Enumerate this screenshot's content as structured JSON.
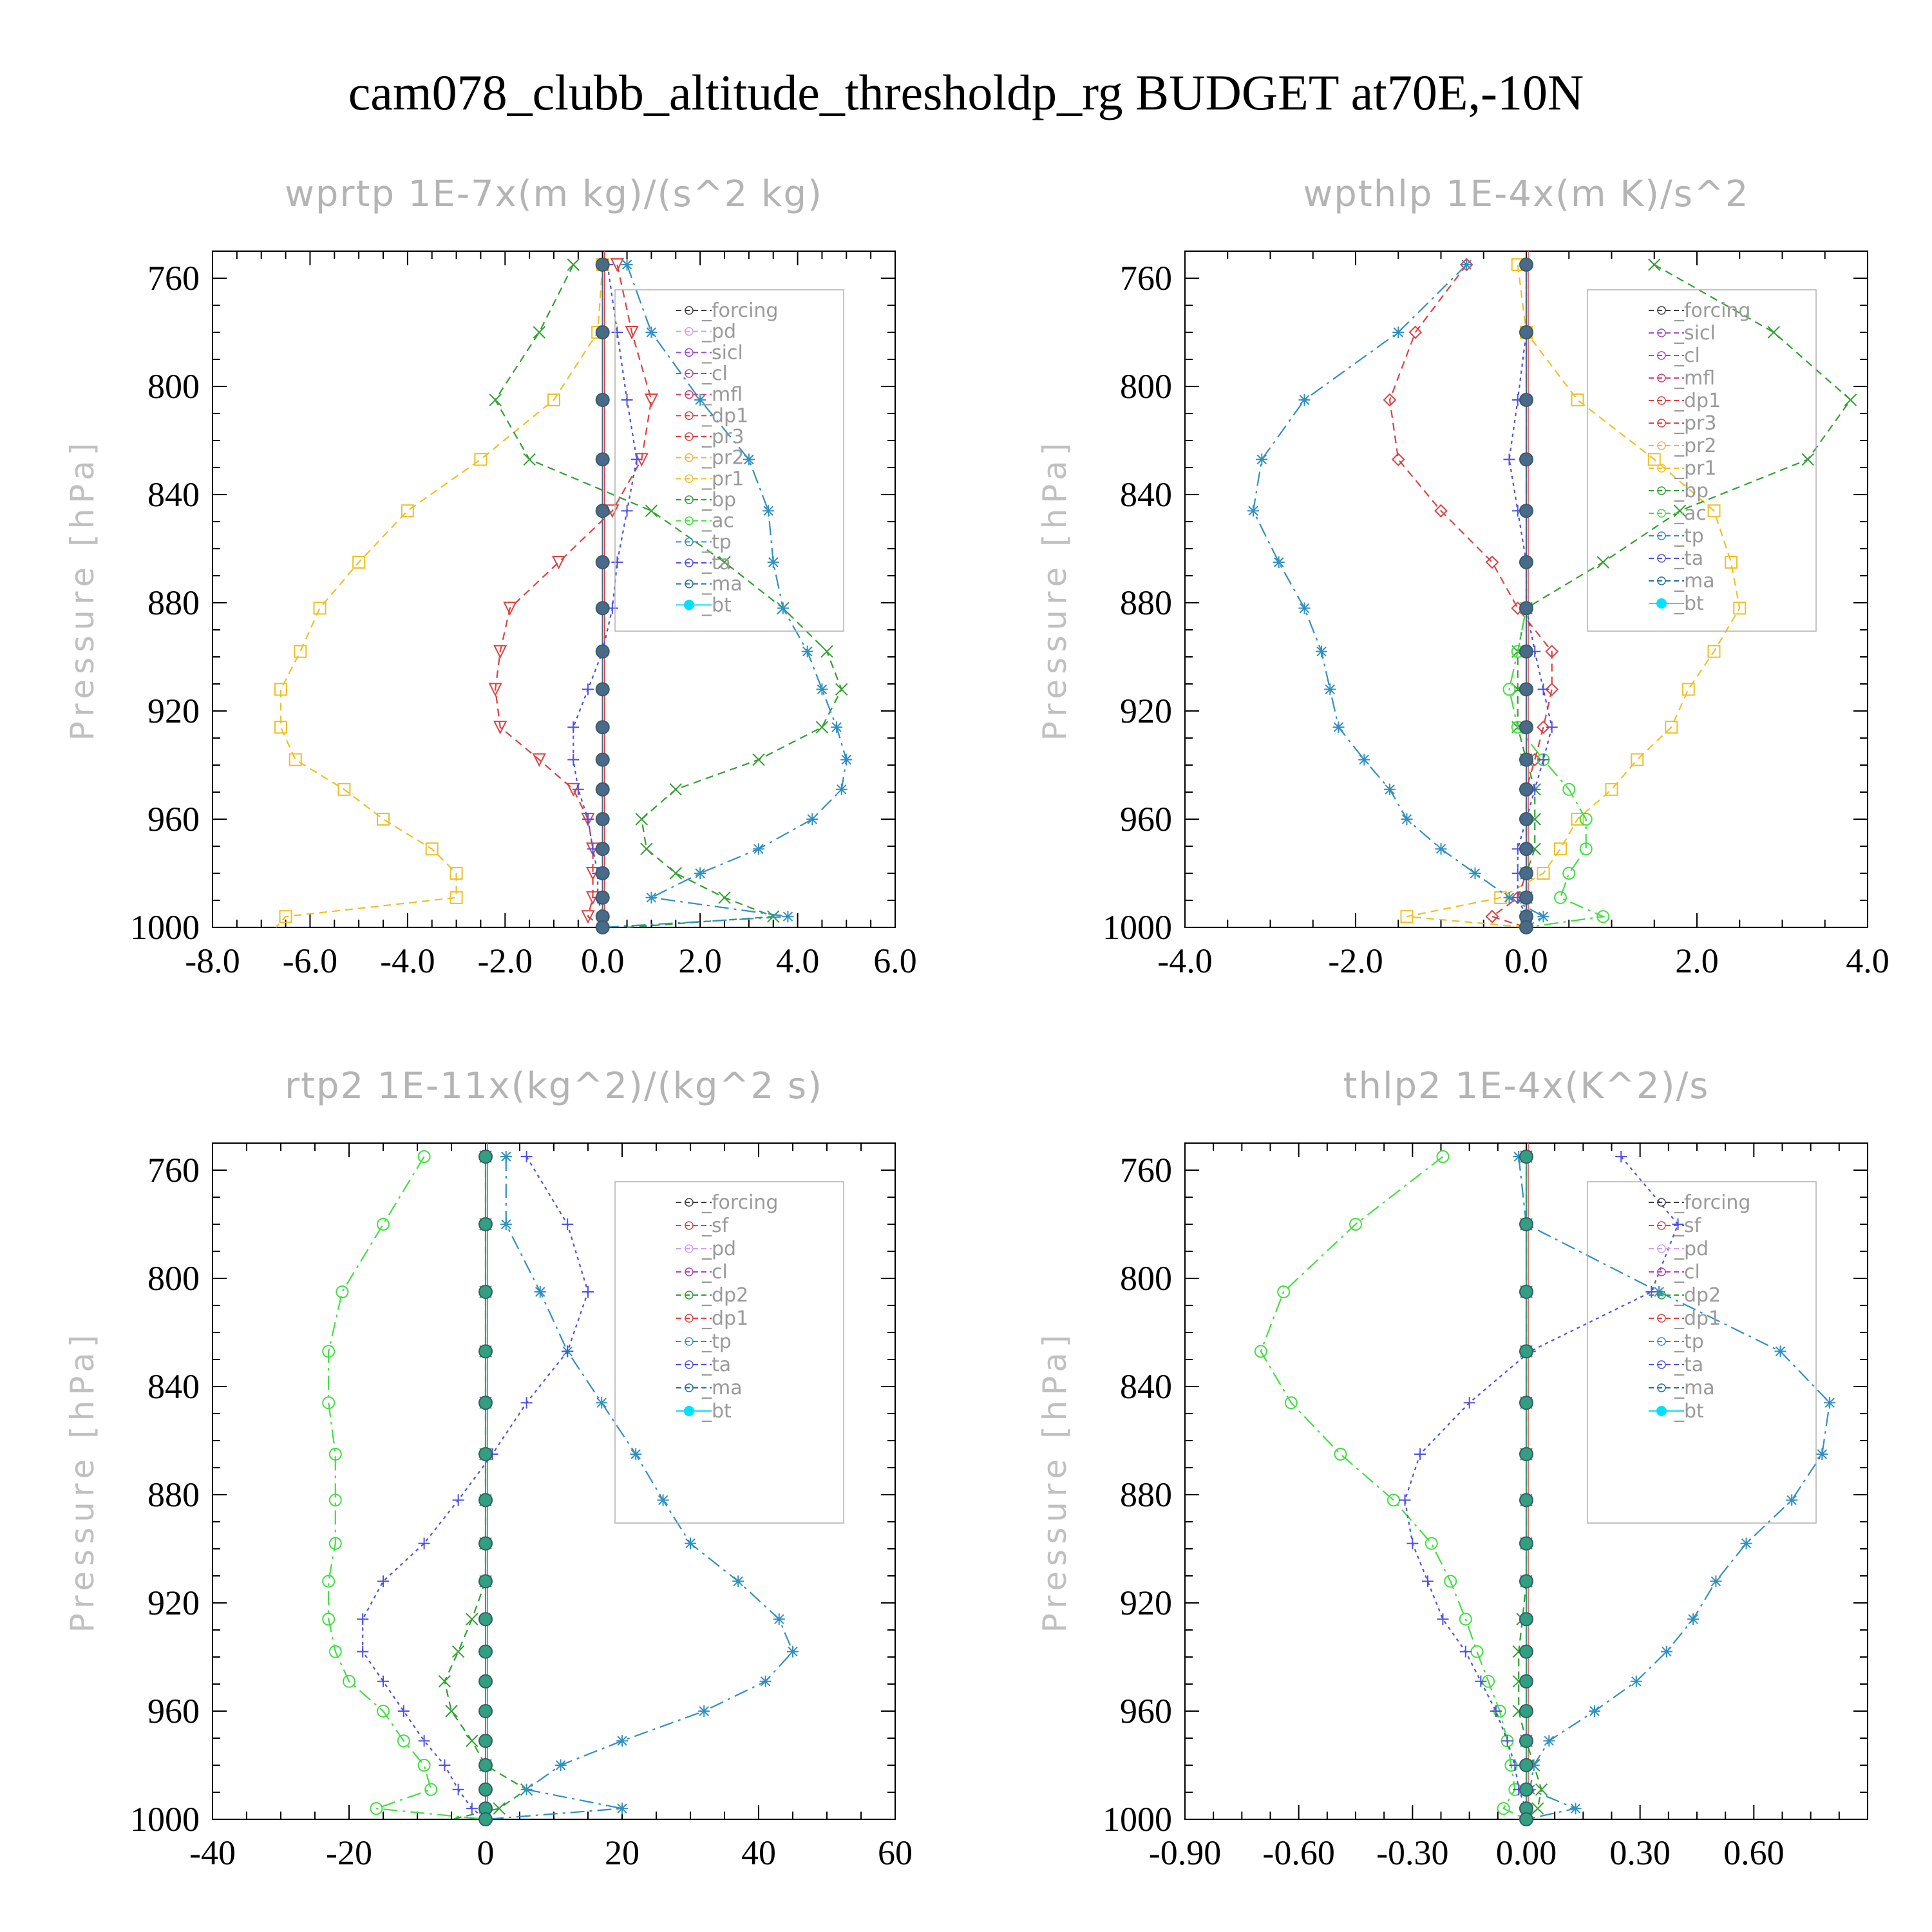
{
  "title": "cam078_clubb_altitude_thresholdp_rg  BUDGET at70E,-10N",
  "colors": {
    "forcing_dark": "#404040",
    "pd": "#c8a0e8",
    "sicl": "#9a50d0",
    "cl": "#b040c0",
    "mfl": "#d04070",
    "dp1_red": "#e04040",
    "pr3": "#e04040",
    "pr2": "#ffb040",
    "pr1": "#f0c020",
    "bp": "#30a030",
    "ac": "#40e040",
    "tp": "#3090c0",
    "ta": "#5050e0",
    "ma": "#2070a0",
    "bt": "#00e0ff"
  },
  "chart_data": [
    {
      "type": "line",
      "title": "wprtp  1E-7x(m kg)/(s^2 kg)",
      "ylabel": "Pressure [hPa]",
      "xlim": [
        -8,
        6
      ],
      "ylim": [
        750,
        1000
      ],
      "xticks": [
        "-8.0",
        "-6.0",
        "-4.0",
        "-2.0",
        "0.0",
        "2.0",
        "4.0",
        "6.0"
      ],
      "xtick_values": [
        -8,
        -6,
        -4,
        -2,
        0,
        2,
        4,
        6
      ],
      "yticks": [
        "760",
        "800",
        "840",
        "880",
        "920",
        "960",
        "1000"
      ],
      "levels": [
        755,
        780,
        805,
        827,
        846,
        865,
        882,
        898,
        912,
        926,
        938,
        949,
        960,
        971,
        980,
        989,
        996,
        1000
      ],
      "legend": [
        "_forcing",
        "_pd",
        "_sicl",
        "_cl",
        "_mfl",
        "_dp1",
        "_pr3",
        "_pr2",
        "_pr1",
        "_bp",
        "_ac",
        "_tp",
        "_ta",
        "_ma",
        "_bt"
      ],
      "series": [
        {
          "name": "_pr1",
          "color": "#f0c020",
          "marker": "square",
          "dash": "12,8",
          "values": [
            0.0,
            -0.1,
            -1.0,
            -2.5,
            -4.0,
            -5.0,
            -5.8,
            -6.2,
            -6.6,
            -6.6,
            -6.3,
            -5.3,
            -4.5,
            -3.5,
            -3.0,
            -3.0,
            -6.5,
            -6.7
          ]
        },
        {
          "name": "_pr3",
          "color": "#e04040",
          "marker": "tri-down",
          "dash": "12,8",
          "values": [
            0.3,
            0.6,
            1.0,
            0.8,
            0.2,
            -0.9,
            -1.9,
            -2.1,
            -2.2,
            -2.1,
            -1.3,
            -0.6,
            -0.3,
            -0.2,
            -0.2,
            -0.2,
            -0.3,
            0.0
          ]
        },
        {
          "name": "_bp",
          "color": "#30a030",
          "marker": "x",
          "dash": "12,8",
          "values": [
            -0.6,
            -1.3,
            -2.2,
            -1.5,
            1.0,
            2.5,
            3.7,
            4.6,
            4.9,
            4.5,
            3.2,
            1.5,
            0.8,
            0.9,
            1.5,
            2.5,
            3.5,
            0.5
          ]
        },
        {
          "name": "_tp",
          "color": "#3090c0",
          "marker": "asterisk",
          "dash": "22,8,4,8",
          "values": [
            0.5,
            1.0,
            2.0,
            3.0,
            3.4,
            3.5,
            3.7,
            4.2,
            4.5,
            4.8,
            5.0,
            4.9,
            4.3,
            3.2,
            2.0,
            1.0,
            3.8,
            0.0
          ]
        },
        {
          "name": "_ta",
          "color": "#5050e0",
          "marker": "plus",
          "dash": "5,6",
          "values": [
            0.1,
            0.3,
            0.5,
            0.7,
            0.5,
            0.3,
            0.2,
            0.0,
            -0.3,
            -0.6,
            -0.6,
            -0.5,
            -0.3,
            -0.2,
            -0.1,
            -0.1,
            0.0,
            0.0
          ]
        },
        {
          "name": "_bt",
          "color": "#4a6a8a",
          "marker": "dot",
          "dash": "",
          "values": [
            0,
            0,
            0,
            0,
            0,
            0,
            0,
            0,
            0,
            0,
            0,
            0,
            0,
            0,
            0,
            0,
            0,
            0
          ]
        }
      ]
    },
    {
      "type": "line",
      "title": "wpthlp  1E-4x(m K)/s^2",
      "ylabel": "Pressure [hPa]",
      "xlim": [
        -4,
        4
      ],
      "ylim": [
        750,
        1000
      ],
      "xticks": [
        "-4.0",
        "-2.0",
        "0.0",
        "2.0",
        "4.0"
      ],
      "xtick_values": [
        -4,
        -2,
        0,
        2,
        4
      ],
      "yticks": [
        "760",
        "800",
        "840",
        "880",
        "920",
        "960",
        "1000"
      ],
      "levels": [
        755,
        780,
        805,
        827,
        846,
        865,
        882,
        898,
        912,
        926,
        938,
        949,
        960,
        971,
        980,
        989,
        996,
        1000
      ],
      "legend": [
        "_forcing",
        "_sicl",
        "_cl",
        "_mfl",
        "_dp1",
        "_pr3",
        "_pr2",
        "_pr1",
        "_bp",
        "_ac",
        "_tp",
        "_ta",
        "_ma",
        "_bt"
      ],
      "series": [
        {
          "name": "_pr1",
          "color": "#f0c020",
          "marker": "square",
          "dash": "12,8",
          "values": [
            -0.1,
            0.0,
            0.6,
            1.5,
            2.2,
            2.4,
            2.5,
            2.2,
            1.9,
            1.7,
            1.3,
            1.0,
            0.6,
            0.4,
            0.2,
            -0.3,
            -1.4,
            0.0
          ]
        },
        {
          "name": "_dp1",
          "color": "#e04040",
          "marker": "diamond",
          "dash": "12,8",
          "values": [
            -0.7,
            -1.3,
            -1.6,
            -1.5,
            -1.0,
            -0.4,
            -0.1,
            0.3,
            0.3,
            0.2,
            0.1,
            0.0,
            0.0,
            0.0,
            0.0,
            -0.1,
            -0.4,
            0.0
          ]
        },
        {
          "name": "_bp",
          "color": "#30a030",
          "marker": "x",
          "dash": "12,8",
          "values": [
            1.5,
            2.9,
            3.8,
            3.3,
            1.8,
            0.9,
            0.0,
            -0.1,
            -0.1,
            -0.1,
            0.0,
            0.1,
            0.1,
            0.1,
            0.0,
            0.0,
            0.0,
            0.0
          ]
        },
        {
          "name": "_ac",
          "color": "#40e040",
          "marker": "circle",
          "dash": "22,8,4,8",
          "values": [
            0.0,
            0.0,
            0.0,
            0.0,
            0.0,
            0.0,
            0.0,
            -0.1,
            -0.2,
            -0.1,
            0.2,
            0.5,
            0.7,
            0.7,
            0.5,
            0.4,
            0.9,
            0.0
          ]
        },
        {
          "name": "_tp",
          "color": "#3090c0",
          "marker": "asterisk",
          "dash": "22,8,4,8",
          "values": [
            -0.7,
            -1.5,
            -2.6,
            -3.1,
            -3.2,
            -2.9,
            -2.6,
            -2.4,
            -2.3,
            -2.2,
            -1.9,
            -1.6,
            -1.4,
            -1.0,
            -0.6,
            -0.2,
            0.2,
            0.0
          ]
        },
        {
          "name": "_ta",
          "color": "#5050e0",
          "marker": "plus",
          "dash": "5,6",
          "values": [
            0.0,
            0.0,
            -0.1,
            -0.2,
            -0.1,
            0.0,
            0.0,
            0.1,
            0.2,
            0.3,
            0.2,
            0.1,
            0.0,
            -0.1,
            -0.1,
            -0.1,
            0.0,
            0.0
          ]
        },
        {
          "name": "_bt",
          "color": "#4a6a8a",
          "marker": "dot",
          "dash": "",
          "values": [
            0,
            0,
            0,
            0,
            0,
            0,
            0,
            0,
            0,
            0,
            0,
            0,
            0,
            0,
            0,
            0,
            0,
            0
          ]
        }
      ]
    },
    {
      "type": "line",
      "title": "rtp2  1E-11x(kg^2)/(kg^2 s)",
      "ylabel": "Pressure [hPa]",
      "xlim": [
        -40,
        60
      ],
      "ylim": [
        750,
        1000
      ],
      "xticks": [
        "-40",
        "-20",
        "0",
        "20",
        "40",
        "60"
      ],
      "xtick_values": [
        -40,
        -20,
        0,
        20,
        40,
        60
      ],
      "yticks": [
        "760",
        "800",
        "840",
        "880",
        "920",
        "960",
        "1000"
      ],
      "levels": [
        755,
        780,
        805,
        827,
        846,
        865,
        882,
        898,
        912,
        926,
        938,
        949,
        960,
        971,
        980,
        989,
        996,
        1000
      ],
      "legend": [
        "_forcing",
        "_sf",
        "_pd",
        "_cl",
        "_dp2",
        "_dp1",
        "_tp",
        "_ta",
        "_ma",
        "_bt"
      ],
      "series": [
        {
          "name": "_dp1",
          "color": "#40e040",
          "marker": "circle",
          "dash": "22,8,4,8",
          "values": [
            -9,
            -15,
            -21,
            -23,
            -23,
            -22,
            -22,
            -22,
            -23,
            -23,
            -22,
            -20,
            -15,
            -12,
            -9,
            -8,
            -16,
            0
          ]
        },
        {
          "name": "_dp2",
          "color": "#30a030",
          "marker": "x",
          "dash": "12,8",
          "values": [
            0,
            0,
            0,
            0,
            0,
            0,
            0,
            0,
            0,
            -2,
            -4,
            -6,
            -5,
            -2,
            0,
            6,
            2,
            -5
          ]
        },
        {
          "name": "_tp",
          "color": "#3090c0",
          "marker": "asterisk",
          "dash": "22,8,4,8",
          "values": [
            3,
            3,
            8,
            12,
            17,
            22,
            26,
            30,
            37,
            43,
            45,
            41,
            32,
            20,
            11,
            6,
            20,
            0
          ]
        },
        {
          "name": "_ta",
          "color": "#5050e0",
          "marker": "plus",
          "dash": "5,6",
          "values": [
            6,
            12,
            15,
            12,
            6,
            1,
            -4,
            -9,
            -15,
            -18,
            -18,
            -15,
            -12,
            -9,
            -6,
            -4,
            -2,
            0
          ]
        },
        {
          "name": "_bt",
          "color": "#30a080",
          "marker": "dot",
          "dash": "",
          "values": [
            0,
            0,
            0,
            0,
            0,
            0,
            0,
            0,
            0,
            0,
            0,
            0,
            0,
            0,
            0,
            0,
            0,
            0
          ]
        }
      ]
    },
    {
      "type": "line",
      "title": "thlp2  1E-4x(K^2)/s",
      "ylabel": "Pressure [hPa]",
      "xlim": [
        -0.9,
        0.9
      ],
      "ylim": [
        750,
        1000
      ],
      "xticks": [
        "-0.90",
        "-0.60",
        "-0.30",
        "0.00",
        "0.30",
        "0.60"
      ],
      "xtick_values": [
        -0.9,
        -0.6,
        -0.3,
        0.0,
        0.3,
        0.6
      ],
      "yticks": [
        "760",
        "800",
        "840",
        "880",
        "920",
        "960",
        "1000"
      ],
      "levels": [
        755,
        780,
        805,
        827,
        846,
        865,
        882,
        898,
        912,
        926,
        938,
        949,
        960,
        971,
        980,
        989,
        996,
        1000
      ],
      "legend": [
        "_forcing",
        "_sf",
        "_pd",
        "_cl",
        "_dp2",
        "_dp1",
        "_tp",
        "_ta",
        "_ma",
        "_bt"
      ],
      "series": [
        {
          "name": "_dp1",
          "color": "#40e040",
          "marker": "circle",
          "dash": "22,8,4,8",
          "values": [
            -0.22,
            -0.45,
            -0.64,
            -0.7,
            -0.62,
            -0.49,
            -0.35,
            -0.25,
            -0.2,
            -0.16,
            -0.13,
            -0.1,
            -0.07,
            -0.05,
            -0.04,
            -0.03,
            -0.06,
            0.0
          ]
        },
        {
          "name": "_dp2",
          "color": "#30a030",
          "marker": "x",
          "dash": "12,8",
          "values": [
            0.0,
            0.0,
            0.0,
            0.0,
            0.0,
            0.0,
            0.0,
            0.0,
            0.0,
            -0.01,
            -0.02,
            -0.02,
            -0.02,
            0.0,
            0.02,
            0.04,
            0.03,
            0.0
          ]
        },
        {
          "name": "_tp",
          "color": "#3090c0",
          "marker": "asterisk",
          "dash": "22,8,4,8",
          "values": [
            -0.02,
            0.0,
            0.35,
            0.67,
            0.8,
            0.78,
            0.7,
            0.58,
            0.5,
            0.44,
            0.37,
            0.29,
            0.18,
            0.06,
            0.02,
            0.01,
            0.13,
            0.0
          ]
        },
        {
          "name": "_ta",
          "color": "#5050e0",
          "marker": "plus",
          "dash": "5,6",
          "values": [
            0.25,
            0.4,
            0.33,
            0.01,
            -0.15,
            -0.28,
            -0.32,
            -0.3,
            -0.26,
            -0.22,
            -0.16,
            -0.12,
            -0.08,
            -0.05,
            -0.03,
            -0.02,
            0.0,
            0.0
          ]
        },
        {
          "name": "_bt",
          "color": "#30a080",
          "marker": "dot",
          "dash": "",
          "values": [
            0,
            0,
            0,
            0,
            0,
            0,
            0,
            0,
            0,
            0,
            0,
            0,
            0,
            0,
            0,
            0,
            0,
            0
          ]
        }
      ]
    }
  ]
}
